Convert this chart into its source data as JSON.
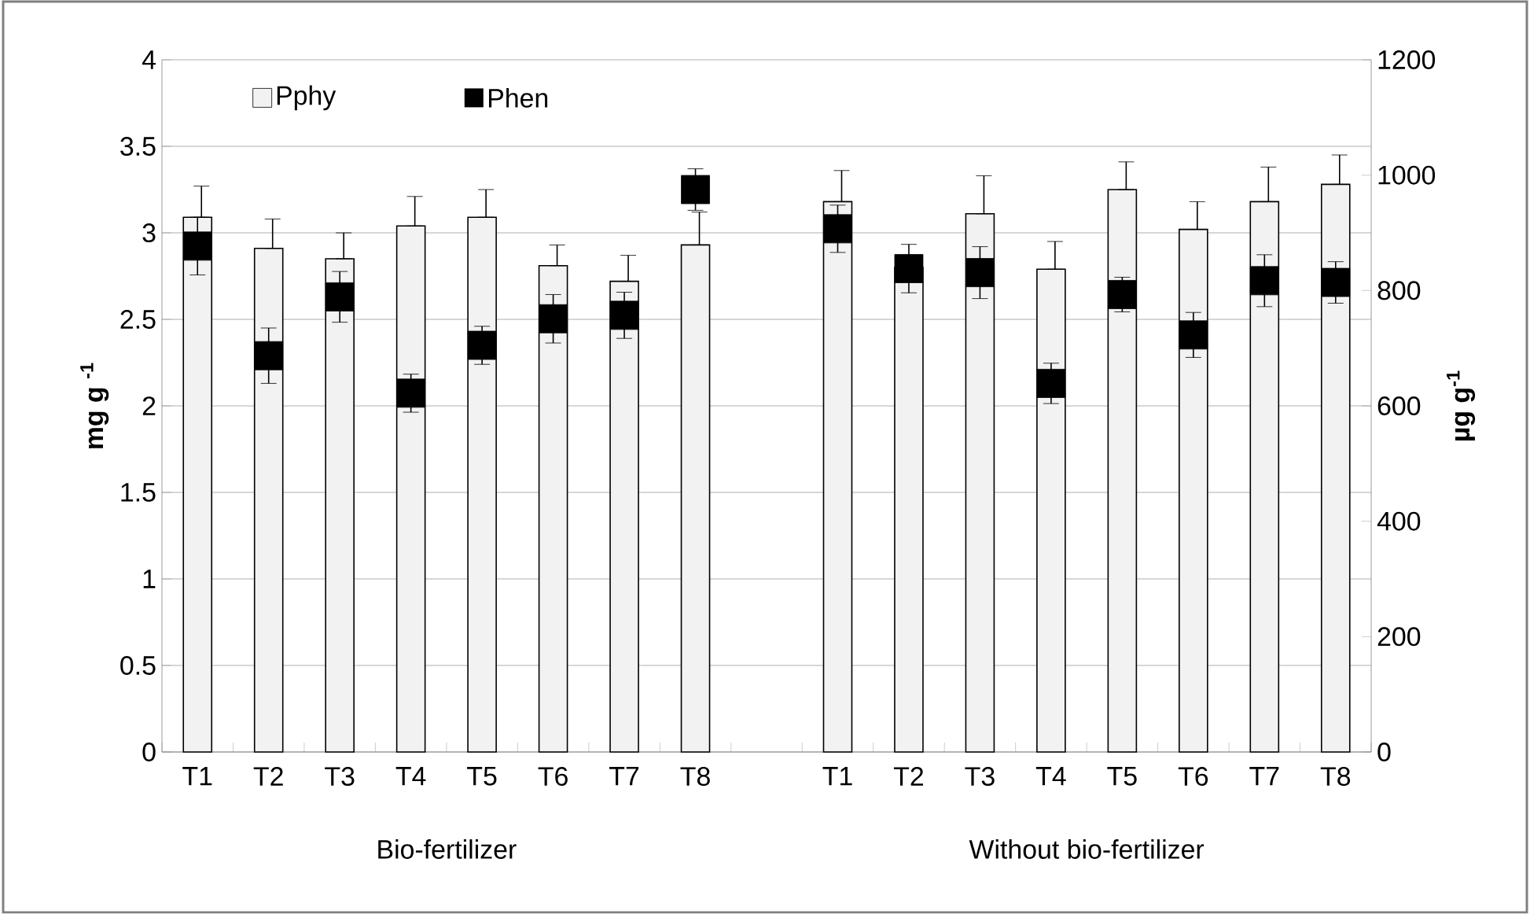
{
  "chart_data": {
    "type": "bar",
    "categories": [
      "T1",
      "T2",
      "T3",
      "T4",
      "T5",
      "T6",
      "T7",
      "T8",
      null,
      "T1",
      "T2",
      "T3",
      "T4",
      "T5",
      "T6",
      "T7",
      "T8"
    ],
    "series": [
      {
        "name": "Pphy",
        "color": "#f2f2f2",
        "values": [
          3.09,
          2.91,
          2.85,
          3.04,
          3.09,
          2.81,
          2.72,
          2.93,
          null,
          3.18,
          2.8,
          3.11,
          2.79,
          3.25,
          3.02,
          3.18,
          3.28
        ],
        "errors": [
          [
            3.09,
            3.27
          ],
          [
            2.91,
            3.08
          ],
          [
            2.85,
            3.0
          ],
          [
            3.04,
            3.21
          ],
          [
            3.09,
            3.25
          ],
          [
            2.81,
            2.93
          ],
          [
            2.72,
            2.87
          ],
          [
            2.93,
            3.12
          ],
          null,
          [
            3.18,
            3.36
          ],
          null,
          [
            3.11,
            3.33
          ],
          [
            2.79,
            2.95
          ],
          [
            3.25,
            3.41
          ],
          [
            3.02,
            3.18
          ],
          [
            3.18,
            3.38
          ],
          [
            3.28,
            3.45
          ]
        ]
      },
      {
        "name": "Phen",
        "type": "scatter",
        "axis": "y2",
        "color": "#000000",
        "marker": "square",
        "values": [
          877,
          687,
          789,
          622,
          705,
          751,
          757,
          975,
          null,
          907,
          838,
          831,
          639,
          793,
          723,
          817,
          814
        ],
        "errors": [
          50,
          48,
          44,
          33,
          33,
          42,
          40,
          36,
          null,
          41,
          42,
          45,
          35,
          30,
          39,
          45,
          36
        ]
      }
    ],
    "ylabel": "mg g $^{-1}$",
    "y2label": "µg g$^{-1}$",
    "ylim": [
      0,
      4
    ],
    "yticks": [
      0,
      0.5,
      1,
      1.5,
      2,
      2.5,
      3,
      3.5,
      4
    ],
    "y2lim": [
      0,
      1200
    ],
    "y2ticks": [
      0,
      200,
      400,
      600,
      800,
      1000,
      1200
    ],
    "grid": "y",
    "legend": "top left",
    "annotations": [
      "Bio-fertilizer",
      "Without bio-fertilizer"
    ]
  }
}
